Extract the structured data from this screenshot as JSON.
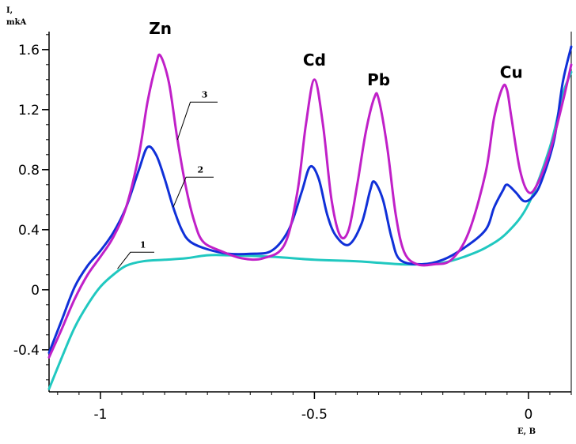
{
  "chart_data": {
    "type": "line",
    "ylabel_line1": "I,",
    "ylabel_line2": "mkA",
    "xlabel": "E, B",
    "xlim": [
      -1.12,
      0.1
    ],
    "ylim": [
      -0.68,
      1.72
    ],
    "x_ticks": [
      -1,
      -0.5,
      0
    ],
    "x_tick_labels": [
      "-1",
      "-0.5",
      "0"
    ],
    "y_ticks": [
      -0.4,
      0,
      0.4,
      0.8,
      1.2,
      1.6
    ],
    "y_tick_labels": [
      "-0.4",
      "0",
      "0.4",
      "0.8",
      "1.2",
      "1.6"
    ],
    "grid": false,
    "series": [
      {
        "name": "1",
        "color": "#20c8c0",
        "x": [
          -1.12,
          -1.09,
          -1.06,
          -1.03,
          -1.0,
          -0.97,
          -0.94,
          -0.9,
          -0.85,
          -0.8,
          -0.75,
          -0.7,
          -0.6,
          -0.5,
          -0.4,
          -0.3,
          -0.25,
          -0.2,
          -0.15,
          -0.1,
          -0.05,
          0.0,
          0.05,
          0.08,
          0.1
        ],
        "y": [
          -0.66,
          -0.45,
          -0.25,
          -0.1,
          0.02,
          0.1,
          0.16,
          0.19,
          0.2,
          0.21,
          0.23,
          0.23,
          0.22,
          0.2,
          0.19,
          0.17,
          0.17,
          0.18,
          0.22,
          0.28,
          0.38,
          0.57,
          0.95,
          1.3,
          1.45
        ]
      },
      {
        "name": "2",
        "color": "#1030d8",
        "x": [
          -1.12,
          -1.09,
          -1.06,
          -1.03,
          -1.0,
          -0.97,
          -0.94,
          -0.91,
          -0.89,
          -0.87,
          -0.85,
          -0.83,
          -0.81,
          -0.79,
          -0.75,
          -0.7,
          -0.65,
          -0.6,
          -0.56,
          -0.53,
          -0.51,
          -0.49,
          -0.47,
          -0.45,
          -0.42,
          -0.39,
          -0.37,
          -0.36,
          -0.34,
          -0.32,
          -0.3,
          -0.25,
          -0.2,
          -0.15,
          -0.1,
          -0.08,
          -0.06,
          -0.05,
          -0.03,
          -0.01,
          0.01,
          0.03,
          0.06,
          0.08,
          0.1
        ],
        "y": [
          -0.42,
          -0.2,
          0.02,
          0.16,
          0.26,
          0.38,
          0.55,
          0.8,
          0.95,
          0.9,
          0.74,
          0.55,
          0.4,
          0.32,
          0.27,
          0.24,
          0.24,
          0.26,
          0.4,
          0.65,
          0.82,
          0.74,
          0.5,
          0.36,
          0.3,
          0.44,
          0.66,
          0.72,
          0.6,
          0.35,
          0.2,
          0.17,
          0.2,
          0.28,
          0.4,
          0.55,
          0.66,
          0.7,
          0.65,
          0.59,
          0.62,
          0.72,
          1.0,
          1.38,
          1.62
        ]
      },
      {
        "name": "3",
        "color": "#c020c8",
        "x": [
          -1.12,
          -1.09,
          -1.06,
          -1.03,
          -1.0,
          -0.97,
          -0.94,
          -0.91,
          -0.89,
          -0.87,
          -0.86,
          -0.84,
          -0.82,
          -0.8,
          -0.78,
          -0.76,
          -0.72,
          -0.67,
          -0.62,
          -0.57,
          -0.54,
          -0.52,
          -0.5,
          -0.48,
          -0.46,
          -0.44,
          -0.42,
          -0.4,
          -0.38,
          -0.36,
          -0.35,
          -0.33,
          -0.31,
          -0.29,
          -0.26,
          -0.22,
          -0.18,
          -0.14,
          -0.1,
          -0.08,
          -0.06,
          -0.05,
          -0.04,
          -0.02,
          0.0,
          0.02,
          0.05,
          0.08,
          0.1
        ],
        "y": [
          -0.45,
          -0.26,
          -0.06,
          0.1,
          0.22,
          0.35,
          0.55,
          0.9,
          1.25,
          1.5,
          1.56,
          1.38,
          1.0,
          0.68,
          0.45,
          0.32,
          0.26,
          0.21,
          0.21,
          0.3,
          0.65,
          1.1,
          1.4,
          1.1,
          0.6,
          0.36,
          0.4,
          0.7,
          1.05,
          1.28,
          1.27,
          0.95,
          0.5,
          0.25,
          0.17,
          0.17,
          0.2,
          0.38,
          0.78,
          1.15,
          1.35,
          1.33,
          1.15,
          0.8,
          0.65,
          0.7,
          0.92,
          1.25,
          1.5
        ]
      }
    ],
    "annotations": [
      {
        "text": "Zn",
        "x": -0.86,
        "y": 1.74
      },
      {
        "text": "Cd",
        "x": -0.5,
        "y": 1.53
      },
      {
        "text": "Pb",
        "x": -0.35,
        "y": 1.4
      },
      {
        "text": "Cu",
        "x": -0.04,
        "y": 1.45
      }
    ]
  }
}
